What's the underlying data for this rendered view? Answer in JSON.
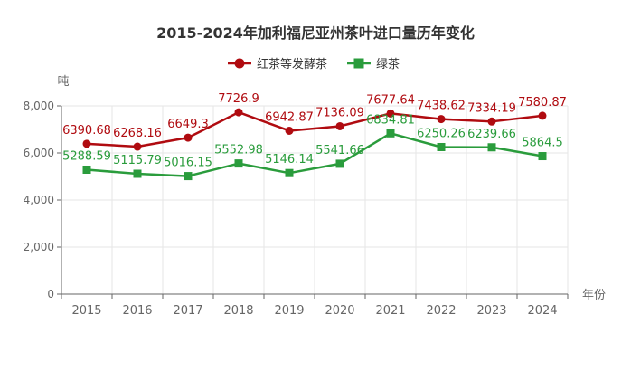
{
  "chart_data": {
    "type": "line",
    "title": "2015-2024年加利福尼亚州茶叶进口量历年变化",
    "xlabel": "年份",
    "ylabel": "吨",
    "categories": [
      "2015",
      "2016",
      "2017",
      "2018",
      "2019",
      "2020",
      "2021",
      "2022",
      "2023",
      "2024"
    ],
    "ylim": [
      0,
      8000
    ],
    "yticks": [
      "0",
      "2,000",
      "4,000",
      "6,000",
      "8,000"
    ],
    "grid": true,
    "legend_position": "top-center",
    "series": [
      {
        "name": "红茶等发酵茶",
        "color": "#b00b10",
        "marker": "circle",
        "values": [
          6390.68,
          6268.16,
          6649.3,
          7726.9,
          6942.87,
          7136.09,
          7677.64,
          7438.62,
          7334.19,
          7580.87
        ],
        "labels": [
          "6390.68",
          "6268.16",
          "6649.3",
          "7726.9",
          "6942.87",
          "7136.09",
          "7677.64",
          "7438.62",
          "7334.19",
          "7580.87"
        ]
      },
      {
        "name": "绿茶",
        "color": "#2a9c3c",
        "marker": "square",
        "values": [
          5288.59,
          5115.79,
          5016.15,
          5552.98,
          5146.14,
          5541.66,
          6834.81,
          6250.26,
          6239.66,
          5864.5
        ],
        "labels": [
          "5288.59",
          "5115.79",
          "5016.15",
          "5552.98",
          "5146.14",
          "5541.66",
          "6834.81",
          "6250.26",
          "6239.66",
          "5864.5"
        ]
      }
    ]
  }
}
